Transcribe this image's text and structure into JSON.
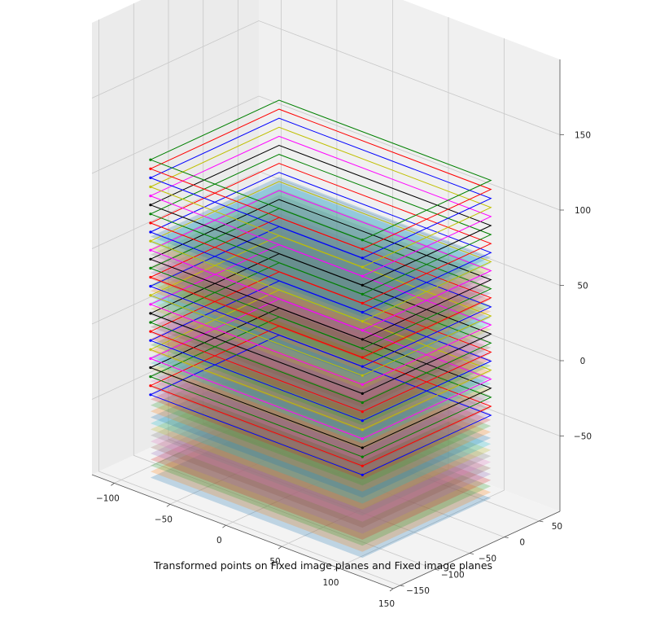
{
  "chart_data": {
    "type": "3d-surface-stack",
    "title": "Transformed points on Fixed image planes and Fixed image planes",
    "xlabel": "",
    "ylabel": "",
    "zlabel": "",
    "x_ticks": [
      -100,
      -50,
      0,
      50,
      100,
      150
    ],
    "y_ticks": [
      -150,
      -100,
      -50,
      0,
      50
    ],
    "z_ticks": [
      -50,
      0,
      50,
      100,
      150
    ],
    "xlim": [
      -120,
      150
    ],
    "ylim": [
      -160,
      80
    ],
    "zlim": [
      -100,
      200
    ],
    "grid": true,
    "background_panes": "light-gray",
    "series": [
      {
        "kind": "filled-planes",
        "alpha": 0.25,
        "z": [
          -95,
          -91,
          -87,
          -83,
          -79,
          -75,
          -71,
          -67,
          -63,
          -59,
          -55,
          -51,
          -47,
          -43,
          -39,
          -35,
          -31,
          -27,
          -23,
          -19,
          -15,
          -11,
          -7,
          -3,
          1,
          5,
          9,
          13,
          17,
          21,
          25,
          29,
          33,
          37,
          41,
          45,
          49,
          53,
          57,
          61,
          65
        ],
        "colors": [
          "#1f77b4",
          "#ff7f0e",
          "#2ca02c",
          "#d62728",
          "#9467bd",
          "#8c564b",
          "#e377c2",
          "#7f7f7f",
          "#bcbd22",
          "#17becf"
        ]
      },
      {
        "kind": "outlined-planes",
        "z": [
          -40,
          -34,
          -28,
          -22,
          -16,
          -10,
          -4,
          2,
          8,
          14,
          20,
          26,
          32,
          38,
          44,
          50,
          56,
          62,
          68,
          74,
          80,
          86,
          92,
          98,
          104,
          110,
          116
        ],
        "colors": [
          "#0000ff",
          "#ff0000",
          "#008000",
          "#000000",
          "#ff00ff",
          "#bfbf00"
        ]
      }
    ]
  }
}
